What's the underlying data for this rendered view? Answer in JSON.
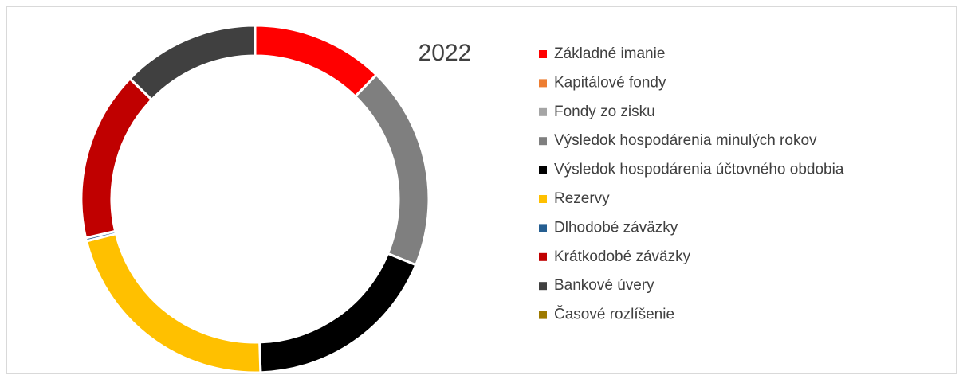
{
  "chart_data": {
    "type": "doughnut",
    "title": "2022",
    "categories": [
      "Základné imanie",
      "Kapitálové fondy",
      "Fondy zo zisku",
      "Výsledok hospodárenia minulých rokov",
      "Výsledok hospodárenia účtovného obdobia",
      "Rezervy",
      "Dlhodobé záväzky",
      "Krátkodobé záväzky",
      "Bankové úvery",
      "Časové rozlíšenie"
    ],
    "values": [
      12.3,
      0,
      0,
      18.9,
      18.3,
      21.6,
      0.3,
      15.8,
      12.8,
      0
    ],
    "colors": [
      "#ff0000",
      "#ed7d31",
      "#a5a5a5",
      "#7f7f7f",
      "#000000",
      "#ffc000",
      "#255e91",
      "#c00000",
      "#404040",
      "#9e7a00"
    ],
    "legend": "right"
  }
}
